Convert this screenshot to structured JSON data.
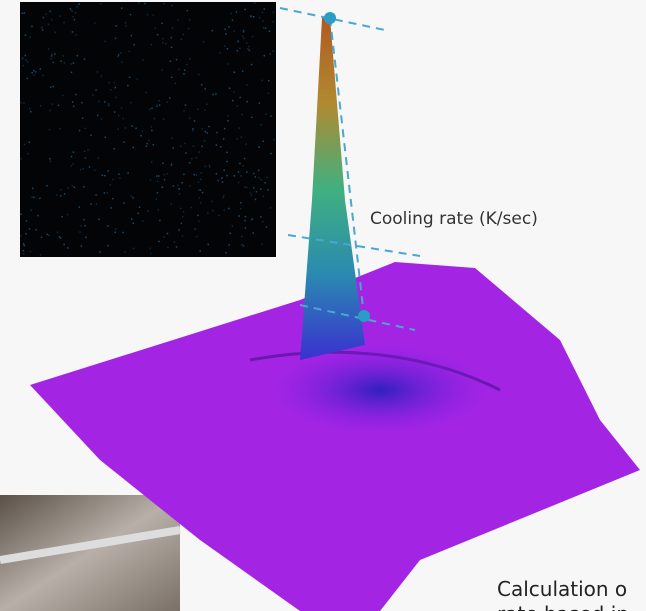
{
  "annotation": {
    "label": "Cooling rate (K/sec)"
  },
  "caption": {
    "lines": [
      "Calculation o",
      "rate based in"
    ]
  }
}
